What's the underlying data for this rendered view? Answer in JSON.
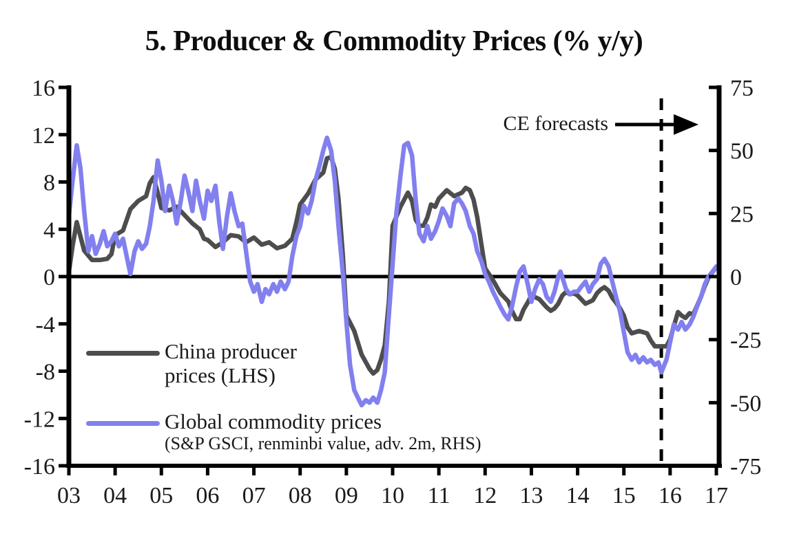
{
  "title": "5. Producer & Commodity Prices (% y/y)",
  "colors": {
    "axis": "#000000",
    "text": "#1a1a1a",
    "background": "#ffffff"
  },
  "chart_data": {
    "type": "line",
    "title": "5. Producer & Commodity Prices (% y/y)",
    "grid": "off",
    "legend_position": "inside-lower-left",
    "x_axis": {
      "start_year": 2003,
      "end_year": 2017,
      "ticks": [
        "03",
        "04",
        "05",
        "06",
        "07",
        "08",
        "09",
        "10",
        "11",
        "12",
        "13",
        "14",
        "15",
        "16",
        "17"
      ]
    },
    "left_axis": {
      "ticks": [
        16,
        12,
        8,
        4,
        0,
        -4,
        -8,
        -12,
        -16
      ],
      "range": [
        -16,
        16
      ]
    },
    "right_axis": {
      "ticks": [
        75,
        50,
        25,
        0,
        -25,
        -50,
        -75
      ],
      "range": [
        -75,
        75
      ]
    },
    "annotation": {
      "label": "CE forecasts",
      "forecast_start": 2015.81,
      "style": "dashed-vertical-line-with-arrow"
    },
    "series": [
      {
        "name": "china-producer-prices",
        "legend_line1": "China producer",
        "legend_line2": "prices (LHS)",
        "axis": "left",
        "color": "#4d4d4d",
        "points": [
          [
            2003.0,
            0.4
          ],
          [
            2003.08,
            2.6
          ],
          [
            2003.17,
            4.6
          ],
          [
            2003.33,
            2.2
          ],
          [
            2003.5,
            1.4
          ],
          [
            2003.67,
            1.4
          ],
          [
            2003.83,
            1.5
          ],
          [
            2003.92,
            1.9
          ],
          [
            2004.0,
            3.5
          ],
          [
            2004.17,
            3.9
          ],
          [
            2004.33,
            5.7
          ],
          [
            2004.5,
            6.4
          ],
          [
            2004.67,
            6.8
          ],
          [
            2004.75,
            7.9
          ],
          [
            2004.83,
            8.4
          ],
          [
            2004.92,
            7.1
          ],
          [
            2005.0,
            5.8
          ],
          [
            2005.17,
            5.6
          ],
          [
            2005.33,
            5.9
          ],
          [
            2005.5,
            5.2
          ],
          [
            2005.67,
            4.5
          ],
          [
            2005.83,
            4.0
          ],
          [
            2005.92,
            3.2
          ],
          [
            2006.0,
            3.1
          ],
          [
            2006.17,
            2.5
          ],
          [
            2006.33,
            2.9
          ],
          [
            2006.5,
            3.5
          ],
          [
            2006.67,
            3.4
          ],
          [
            2006.83,
            2.9
          ],
          [
            2007.0,
            3.3
          ],
          [
            2007.17,
            2.7
          ],
          [
            2007.33,
            2.9
          ],
          [
            2007.5,
            2.4
          ],
          [
            2007.67,
            2.6
          ],
          [
            2007.83,
            3.2
          ],
          [
            2007.92,
            4.6
          ],
          [
            2008.0,
            6.1
          ],
          [
            2008.17,
            7.0
          ],
          [
            2008.33,
            8.2
          ],
          [
            2008.5,
            8.8
          ],
          [
            2008.58,
            10.0
          ],
          [
            2008.67,
            10.1
          ],
          [
            2008.75,
            9.1
          ],
          [
            2008.83,
            6.6
          ],
          [
            2008.92,
            2.0
          ],
          [
            2009.0,
            -3.3
          ],
          [
            2009.17,
            -4.6
          ],
          [
            2009.33,
            -6.6
          ],
          [
            2009.5,
            -7.8
          ],
          [
            2009.58,
            -8.2
          ],
          [
            2009.67,
            -7.9
          ],
          [
            2009.75,
            -7.0
          ],
          [
            2009.83,
            -5.8
          ],
          [
            2009.92,
            -2.1
          ],
          [
            2010.0,
            4.3
          ],
          [
            2010.17,
            5.9
          ],
          [
            2010.33,
            7.1
          ],
          [
            2010.42,
            6.4
          ],
          [
            2010.5,
            4.8
          ],
          [
            2010.58,
            4.3
          ],
          [
            2010.67,
            4.3
          ],
          [
            2010.75,
            5.0
          ],
          [
            2010.83,
            6.1
          ],
          [
            2010.92,
            5.9
          ],
          [
            2011.0,
            6.6
          ],
          [
            2011.17,
            7.3
          ],
          [
            2011.33,
            6.8
          ],
          [
            2011.5,
            7.1
          ],
          [
            2011.58,
            7.5
          ],
          [
            2011.67,
            7.3
          ],
          [
            2011.75,
            6.5
          ],
          [
            2011.83,
            5.0
          ],
          [
            2011.92,
            2.7
          ],
          [
            2012.0,
            0.7
          ],
          [
            2012.17,
            -0.3
          ],
          [
            2012.33,
            -1.4
          ],
          [
            2012.5,
            -2.1
          ],
          [
            2012.58,
            -2.9
          ],
          [
            2012.67,
            -3.6
          ],
          [
            2012.75,
            -3.6
          ],
          [
            2012.83,
            -2.8
          ],
          [
            2012.92,
            -2.2
          ],
          [
            2013.0,
            -1.6
          ],
          [
            2013.17,
            -1.9
          ],
          [
            2013.33,
            -2.6
          ],
          [
            2013.42,
            -2.9
          ],
          [
            2013.5,
            -2.7
          ],
          [
            2013.58,
            -2.3
          ],
          [
            2013.67,
            -1.6
          ],
          [
            2013.75,
            -1.3
          ],
          [
            2013.83,
            -1.5
          ],
          [
            2013.92,
            -1.4
          ],
          [
            2014.0,
            -1.6
          ],
          [
            2014.17,
            -2.3
          ],
          [
            2014.33,
            -2.0
          ],
          [
            2014.42,
            -1.4
          ],
          [
            2014.5,
            -1.1
          ],
          [
            2014.58,
            -0.9
          ],
          [
            2014.67,
            -1.2
          ],
          [
            2014.75,
            -1.8
          ],
          [
            2014.83,
            -2.2
          ],
          [
            2014.92,
            -2.7
          ],
          [
            2015.0,
            -3.3
          ],
          [
            2015.08,
            -4.3
          ],
          [
            2015.17,
            -4.8
          ],
          [
            2015.33,
            -4.6
          ],
          [
            2015.5,
            -4.8
          ],
          [
            2015.58,
            -5.4
          ],
          [
            2015.67,
            -5.9
          ],
          [
            2015.83,
            -5.9
          ],
          [
            2015.92,
            -5.9
          ],
          [
            2016.0,
            -5.3
          ],
          [
            2016.08,
            -4.2
          ],
          [
            2016.17,
            -3.0
          ],
          [
            2016.25,
            -3.3
          ],
          [
            2016.33,
            -3.5
          ],
          [
            2016.42,
            -3.1
          ],
          [
            2016.5,
            -3.2
          ],
          [
            2016.58,
            -2.5
          ],
          [
            2016.67,
            -1.7
          ],
          [
            2016.75,
            -0.8
          ],
          [
            2016.83,
            -0.1
          ],
          [
            2016.92,
            0.4
          ],
          [
            2017.0,
            0.8
          ]
        ]
      },
      {
        "name": "global-commodity-prices",
        "legend_line1": "Global commodity prices",
        "sublabel": "(S&P GSCI, renminbi value, adv. 2m, RHS)",
        "axis": "right",
        "color": "#8280ee",
        "points": [
          [
            2003.0,
            24
          ],
          [
            2003.08,
            38
          ],
          [
            2003.17,
            52
          ],
          [
            2003.25,
            43
          ],
          [
            2003.33,
            26
          ],
          [
            2003.42,
            10
          ],
          [
            2003.5,
            16
          ],
          [
            2003.58,
            9
          ],
          [
            2003.67,
            13
          ],
          [
            2003.75,
            18
          ],
          [
            2003.83,
            12
          ],
          [
            2003.92,
            14
          ],
          [
            2004.0,
            17
          ],
          [
            2004.08,
            12
          ],
          [
            2004.17,
            15
          ],
          [
            2004.25,
            8
          ],
          [
            2004.33,
            1
          ],
          [
            2004.42,
            10
          ],
          [
            2004.5,
            14
          ],
          [
            2004.58,
            11
          ],
          [
            2004.67,
            13
          ],
          [
            2004.75,
            20
          ],
          [
            2004.83,
            30
          ],
          [
            2004.92,
            46
          ],
          [
            2005.0,
            38
          ],
          [
            2005.08,
            26
          ],
          [
            2005.17,
            36
          ],
          [
            2005.25,
            30
          ],
          [
            2005.33,
            21
          ],
          [
            2005.42,
            30
          ],
          [
            2005.5,
            40
          ],
          [
            2005.58,
            34
          ],
          [
            2005.67,
            26
          ],
          [
            2005.75,
            38
          ],
          [
            2005.83,
            30
          ],
          [
            2005.92,
            23
          ],
          [
            2006.0,
            34
          ],
          [
            2006.08,
            30
          ],
          [
            2006.17,
            36
          ],
          [
            2006.25,
            22
          ],
          [
            2006.33,
            11
          ],
          [
            2006.42,
            24
          ],
          [
            2006.5,
            33
          ],
          [
            2006.58,
            26
          ],
          [
            2006.67,
            20
          ],
          [
            2006.75,
            21
          ],
          [
            2006.83,
            10
          ],
          [
            2006.92,
            -2
          ],
          [
            2007.0,
            -6
          ],
          [
            2007.08,
            -3
          ],
          [
            2007.17,
            -10
          ],
          [
            2007.25,
            -5
          ],
          [
            2007.33,
            -7
          ],
          [
            2007.42,
            -3
          ],
          [
            2007.5,
            -6
          ],
          [
            2007.58,
            -2
          ],
          [
            2007.67,
            -5
          ],
          [
            2007.75,
            -2
          ],
          [
            2007.83,
            8
          ],
          [
            2007.92,
            16
          ],
          [
            2008.0,
            20
          ],
          [
            2008.08,
            28
          ],
          [
            2008.17,
            25
          ],
          [
            2008.25,
            30
          ],
          [
            2008.33,
            38
          ],
          [
            2008.42,
            44
          ],
          [
            2008.5,
            50
          ],
          [
            2008.58,
            55
          ],
          [
            2008.67,
            50
          ],
          [
            2008.75,
            38
          ],
          [
            2008.83,
            20
          ],
          [
            2008.92,
            2
          ],
          [
            2009.0,
            -18
          ],
          [
            2009.08,
            -35
          ],
          [
            2009.17,
            -45
          ],
          [
            2009.25,
            -48
          ],
          [
            2009.33,
            -51
          ],
          [
            2009.42,
            -49
          ],
          [
            2009.5,
            -50
          ],
          [
            2009.58,
            -48
          ],
          [
            2009.67,
            -50
          ],
          [
            2009.75,
            -45
          ],
          [
            2009.83,
            -38
          ],
          [
            2009.92,
            -15
          ],
          [
            2010.0,
            5
          ],
          [
            2010.08,
            25
          ],
          [
            2010.17,
            40
          ],
          [
            2010.25,
            52
          ],
          [
            2010.33,
            53
          ],
          [
            2010.42,
            48
          ],
          [
            2010.5,
            30
          ],
          [
            2010.58,
            17
          ],
          [
            2010.67,
            14
          ],
          [
            2010.75,
            20
          ],
          [
            2010.83,
            15
          ],
          [
            2010.92,
            18
          ],
          [
            2011.0,
            22
          ],
          [
            2011.08,
            27
          ],
          [
            2011.17,
            24
          ],
          [
            2011.25,
            20
          ],
          [
            2011.33,
            29
          ],
          [
            2011.42,
            31
          ],
          [
            2011.5,
            29
          ],
          [
            2011.58,
            26
          ],
          [
            2011.67,
            20
          ],
          [
            2011.75,
            17
          ],
          [
            2011.83,
            10
          ],
          [
            2011.92,
            6
          ],
          [
            2012.0,
            1
          ],
          [
            2012.08,
            -2
          ],
          [
            2012.17,
            -6
          ],
          [
            2012.25,
            -9
          ],
          [
            2012.33,
            -12
          ],
          [
            2012.42,
            -15
          ],
          [
            2012.5,
            -17
          ],
          [
            2012.58,
            -12
          ],
          [
            2012.67,
            -4
          ],
          [
            2012.75,
            2
          ],
          [
            2012.83,
            4
          ],
          [
            2012.92,
            -3
          ],
          [
            2013.0,
            -10
          ],
          [
            2013.08,
            -5
          ],
          [
            2013.17,
            -1
          ],
          [
            2013.25,
            -3
          ],
          [
            2013.33,
            -8
          ],
          [
            2013.42,
            -10
          ],
          [
            2013.5,
            -6
          ],
          [
            2013.58,
            0
          ],
          [
            2013.63,
            2
          ],
          [
            2013.75,
            -5
          ],
          [
            2013.83,
            -7
          ],
          [
            2013.92,
            -6
          ],
          [
            2014.0,
            -6
          ],
          [
            2014.08,
            -4
          ],
          [
            2014.17,
            -2
          ],
          [
            2014.25,
            -6
          ],
          [
            2014.33,
            -3
          ],
          [
            2014.42,
            -1
          ],
          [
            2014.5,
            5
          ],
          [
            2014.58,
            7
          ],
          [
            2014.67,
            4
          ],
          [
            2014.75,
            -2
          ],
          [
            2014.83,
            -8
          ],
          [
            2014.92,
            -14
          ],
          [
            2015.0,
            -22
          ],
          [
            2015.08,
            -30
          ],
          [
            2015.17,
            -33
          ],
          [
            2015.25,
            -31
          ],
          [
            2015.33,
            -34
          ],
          [
            2015.42,
            -32
          ],
          [
            2015.5,
            -34
          ],
          [
            2015.58,
            -33
          ],
          [
            2015.67,
            -35
          ],
          [
            2015.75,
            -34
          ],
          [
            2015.81,
            -38
          ],
          [
            2015.92,
            -33
          ],
          [
            2016.0,
            -26
          ],
          [
            2016.08,
            -19
          ],
          [
            2016.17,
            -21
          ],
          [
            2016.25,
            -18
          ],
          [
            2016.33,
            -21
          ],
          [
            2016.42,
            -19
          ],
          [
            2016.5,
            -16
          ],
          [
            2016.58,
            -12
          ],
          [
            2016.67,
            -8
          ],
          [
            2016.75,
            -3
          ],
          [
            2016.83,
            0
          ],
          [
            2016.92,
            2
          ],
          [
            2017.0,
            4
          ]
        ]
      }
    ]
  }
}
